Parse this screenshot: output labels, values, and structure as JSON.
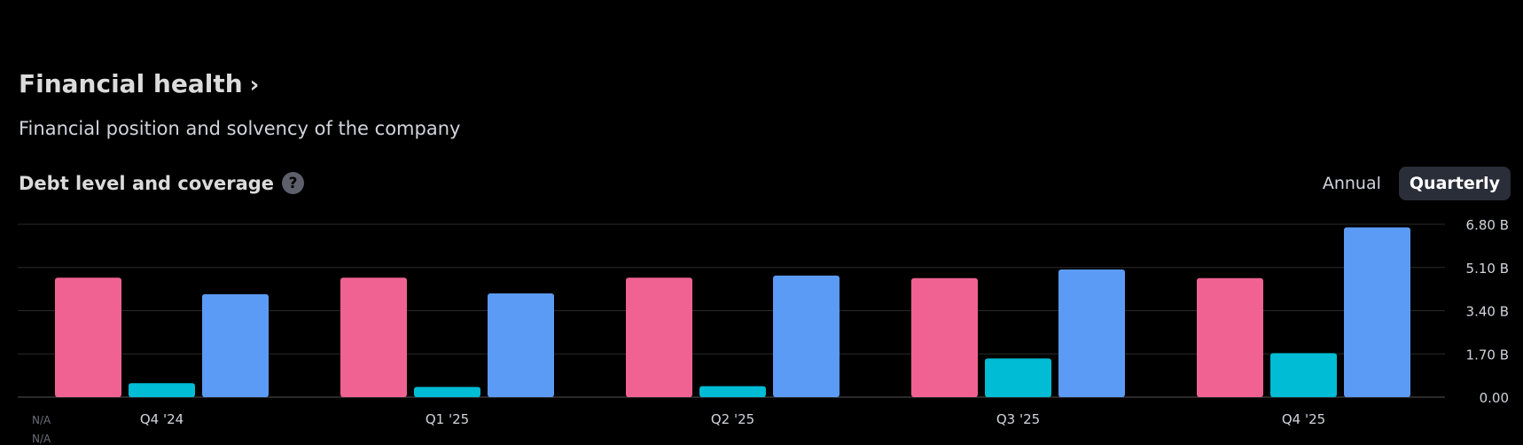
{
  "header": {
    "title": "Financial health",
    "title_chevron": "›",
    "subtitle": "Financial position and solvency of the company"
  },
  "section": {
    "title": "Debt level and coverage",
    "help_icon": "?"
  },
  "period_toggle": {
    "options": [
      "Annual",
      "Quarterly"
    ],
    "selected": "Quarterly"
  },
  "na_labels": [
    "N/A",
    "N/A"
  ],
  "colors": {
    "background": "#000000",
    "debt": "#f06292",
    "free_cash_flow": "#00bcd4",
    "cash": "#5c9bf5",
    "grid": "#2a2a2a",
    "axis_text": "#d1d4dc"
  },
  "chart_data": {
    "type": "bar",
    "categories": [
      "Q4 '24",
      "Q1 '25",
      "Q2 '25",
      "Q3 '25",
      "Q4 '25"
    ],
    "series": [
      {
        "values": [
          4.7,
          4.7,
          4.7,
          4.68,
          4.68
        ]
      },
      {
        "values": [
          0.55,
          0.4,
          0.43,
          1.52,
          1.73
        ]
      },
      {
        "values": [
          4.05,
          4.08,
          4.78,
          5.02,
          6.68
        ]
      }
    ],
    "y_ticks": [
      "0.00",
      "1.70 B",
      "3.40 B",
      "5.10 B",
      "6.80 B"
    ],
    "ylim": [
      0,
      6.8
    ],
    "grid": true,
    "unit": "B"
  }
}
